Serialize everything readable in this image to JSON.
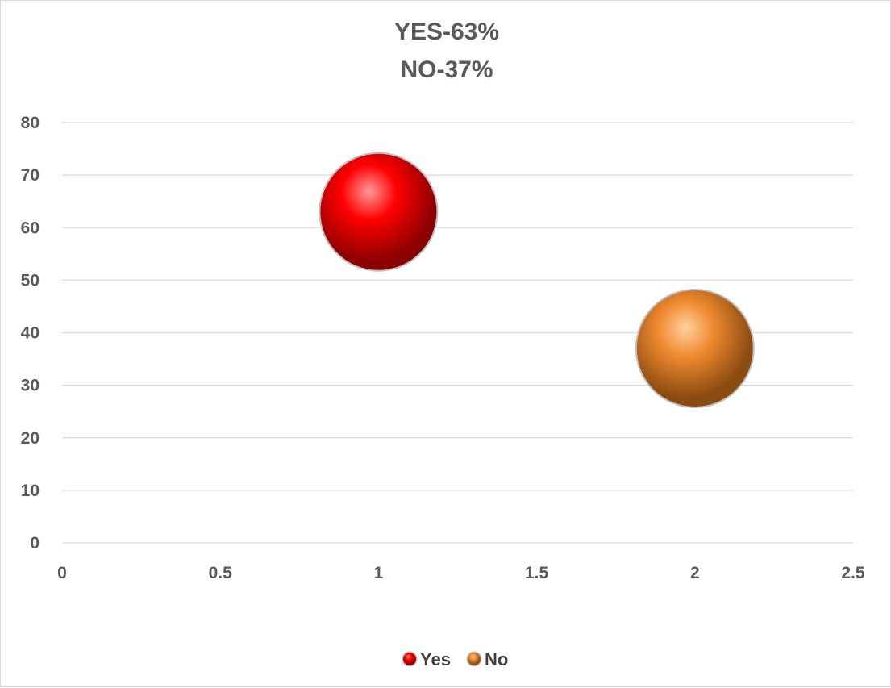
{
  "chart_data": {
    "type": "scatter",
    "title_lines": [
      "YES-63%",
      "NO-37%"
    ],
    "xlabel": "",
    "ylabel": "",
    "xlim": [
      0,
      2.5
    ],
    "ylim": [
      0,
      80
    ],
    "x_ticks": [
      "0",
      "0.5",
      "1",
      "1.5",
      "2",
      "2.5"
    ],
    "y_ticks": [
      "0",
      "10",
      "20",
      "30",
      "40",
      "50",
      "60",
      "70",
      "80"
    ],
    "grid": true,
    "legend_position": "bottom",
    "series": [
      {
        "name": "Yes",
        "color": "#ff0000",
        "dark_color": "#8b0000",
        "light_color": "#ff9a9a",
        "points": [
          {
            "x": 1,
            "y": 63
          }
        ]
      },
      {
        "name": "No",
        "color": "#f08a30",
        "dark_color": "#8a4a10",
        "light_color": "#ffd2a0",
        "points": [
          {
            "x": 2,
            "y": 37
          }
        ]
      }
    ]
  }
}
